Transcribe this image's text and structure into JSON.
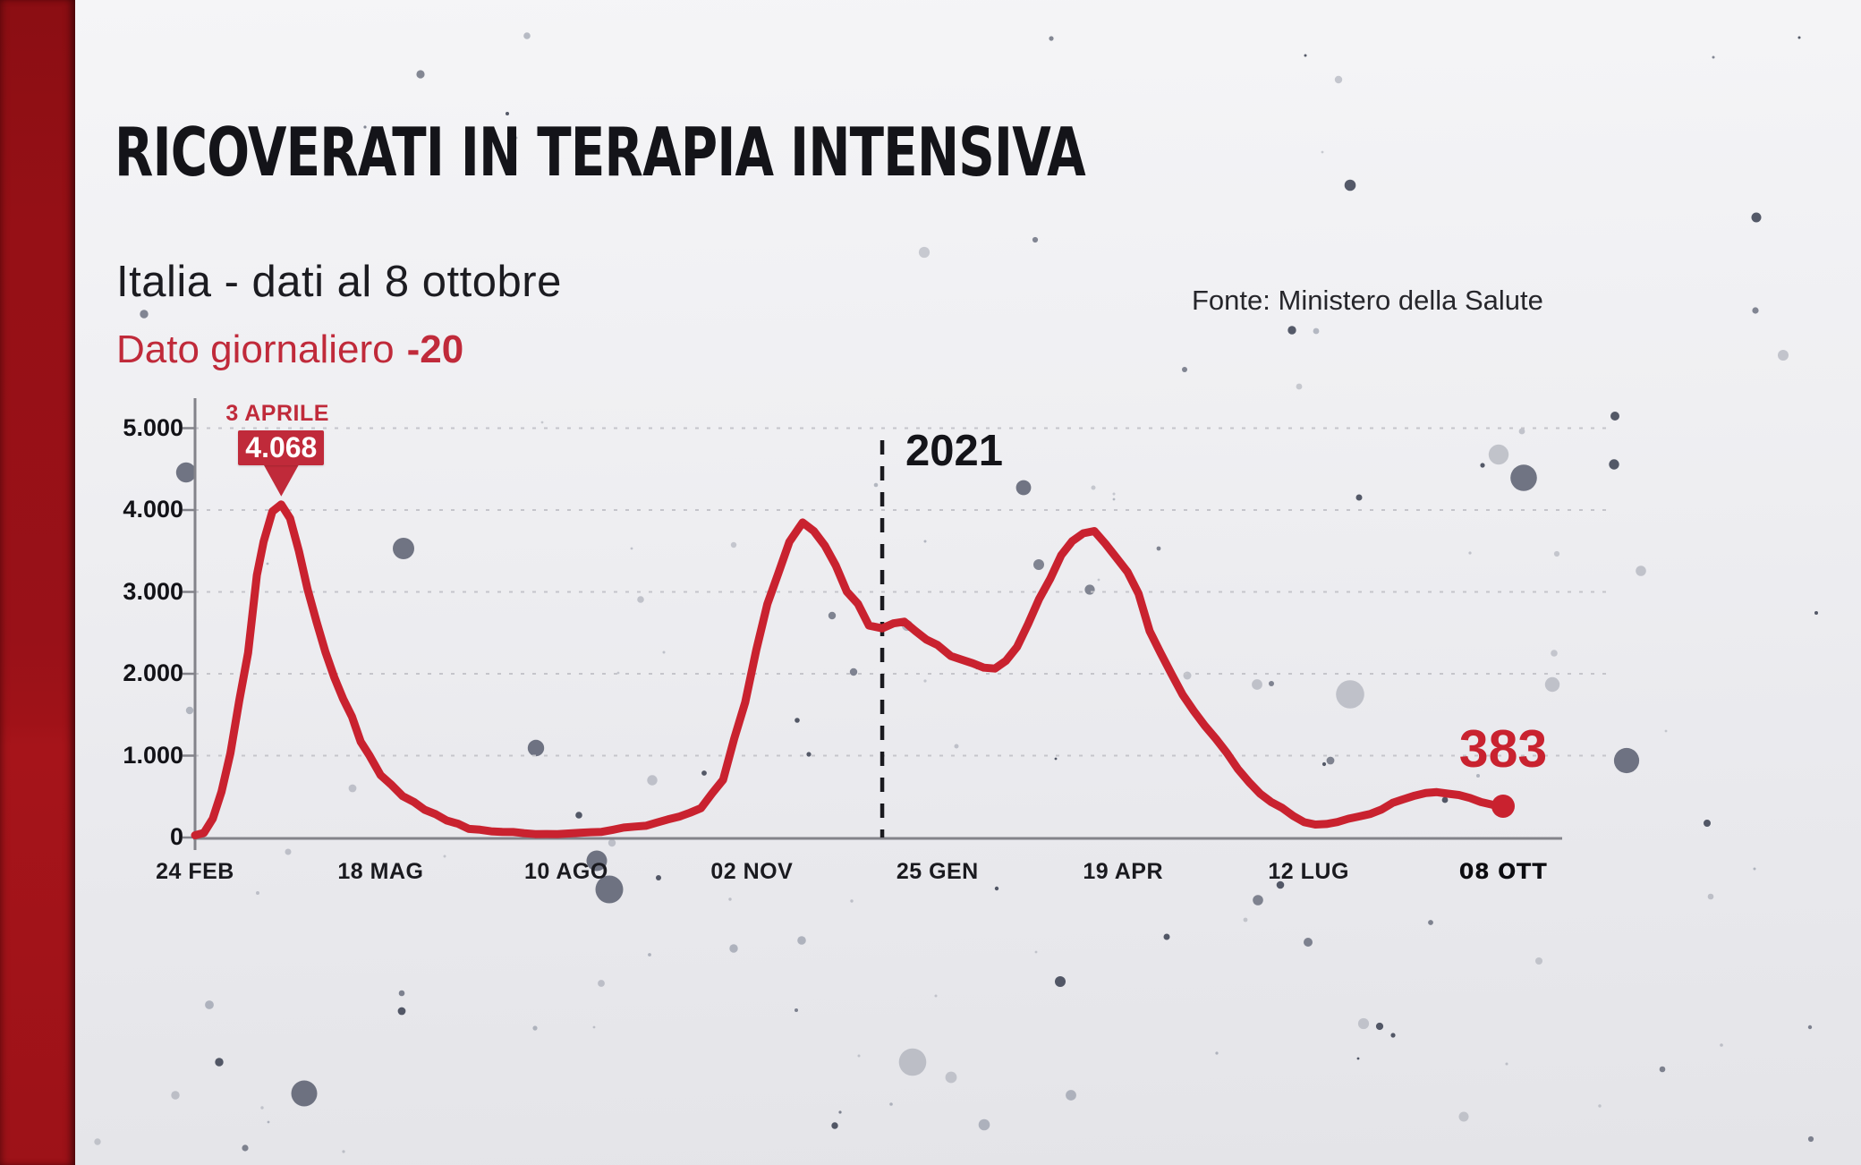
{
  "header": {
    "title": "RICOVERATI IN TERAPIA INTENSIVA",
    "subtitle": "Italia - dati al 8 ottobre",
    "source": "Fonte: Ministero della Salute",
    "daily_label": "Dato giornaliero",
    "daily_delta": "-20"
  },
  "colors": {
    "accent_red": "#c02a3a",
    "line_red": "#c9222f",
    "dark_text": "#141419",
    "grid": "#c5c5cb",
    "axis": "#83838a",
    "bar_top": "#8b0e13",
    "bar_mid": "#a01218",
    "bar_bot": "#a6141a"
  },
  "chart_data": {
    "type": "line",
    "title": "Ricoverati in terapia intensiva - Italia",
    "xlabel": "",
    "ylabel": "",
    "x_tick_labels": [
      "24 FEB",
      "18 MAG",
      "10 AGO",
      "02 NOV",
      "25 GEN",
      "19 APR",
      "12 LUG",
      "08 OTT"
    ],
    "x_tick_days": [
      0,
      84,
      168,
      252,
      336,
      420,
      504,
      592
    ],
    "y_tick_labels": [
      "0",
      "1.000",
      "2.000",
      "3.000",
      "4.000",
      "5.000"
    ],
    "y_tick_values": [
      0,
      1000,
      2000,
      3000,
      4000,
      5000
    ],
    "ylim": [
      0,
      5000
    ],
    "x_range_days": [
      0,
      592
    ],
    "grid": "horizontal dashed",
    "legend": "none",
    "divider": {
      "label": "2021",
      "day": 311
    },
    "peak_annotation": {
      "date_label": "3 APRILE",
      "value_label": "4.068",
      "day": 39,
      "value": 4068
    },
    "last_point": {
      "value_label": "383",
      "day": 592,
      "value": 383
    },
    "series": [
      {
        "name": "Ricoverati in terapia intensiva",
        "points": [
          [
            0,
            27
          ],
          [
            4,
            56
          ],
          [
            8,
            229
          ],
          [
            12,
            560
          ],
          [
            16,
            1028
          ],
          [
            20,
            1672
          ],
          [
            24,
            2257
          ],
          [
            28,
            3204
          ],
          [
            31,
            3612
          ],
          [
            35,
            3981
          ],
          [
            39,
            4068
          ],
          [
            43,
            3898
          ],
          [
            47,
            3497
          ],
          [
            51,
            3026
          ],
          [
            55,
            2635
          ],
          [
            59,
            2267
          ],
          [
            63,
            1956
          ],
          [
            67,
            1694
          ],
          [
            71,
            1479
          ],
          [
            75,
            1168
          ],
          [
            79,
            999
          ],
          [
            84,
            762
          ],
          [
            89,
            640
          ],
          [
            94,
            505
          ],
          [
            99,
            435
          ],
          [
            104,
            338
          ],
          [
            109,
            283
          ],
          [
            114,
            207
          ],
          [
            119,
            168
          ],
          [
            124,
            105
          ],
          [
            129,
            95
          ],
          [
            134,
            75
          ],
          [
            139,
            68
          ],
          [
            144,
            67
          ],
          [
            149,
            53
          ],
          [
            154,
            41
          ],
          [
            159,
            43
          ],
          [
            164,
            42
          ],
          [
            169,
            49
          ],
          [
            174,
            58
          ],
          [
            179,
            64
          ],
          [
            184,
            69
          ],
          [
            189,
            94
          ],
          [
            194,
            121
          ],
          [
            199,
            133
          ],
          [
            204,
            143
          ],
          [
            209,
            182
          ],
          [
            214,
            221
          ],
          [
            219,
            254
          ],
          [
            224,
            303
          ],
          [
            229,
            358
          ],
          [
            234,
            539
          ],
          [
            239,
            705
          ],
          [
            244,
            1208
          ],
          [
            249,
            1651
          ],
          [
            254,
            2292
          ],
          [
            259,
            2849
          ],
          [
            264,
            3230
          ],
          [
            269,
            3612
          ],
          [
            275,
            3848
          ],
          [
            280,
            3744
          ],
          [
            285,
            3567
          ],
          [
            290,
            3320
          ],
          [
            295,
            3003
          ],
          [
            300,
            2855
          ],
          [
            305,
            2589
          ],
          [
            311,
            2555
          ],
          [
            316,
            2615
          ],
          [
            321,
            2636
          ],
          [
            326,
            2522
          ],
          [
            331,
            2418
          ],
          [
            336,
            2352
          ],
          [
            342,
            2218
          ],
          [
            347,
            2172
          ],
          [
            352,
            2128
          ],
          [
            357,
            2074
          ],
          [
            362,
            2063
          ],
          [
            367,
            2157
          ],
          [
            372,
            2327
          ],
          [
            377,
            2605
          ],
          [
            382,
            2914
          ],
          [
            387,
            3157
          ],
          [
            392,
            3448
          ],
          [
            397,
            3620
          ],
          [
            402,
            3716
          ],
          [
            407,
            3743
          ],
          [
            412,
            3588
          ],
          [
            417,
            3417
          ],
          [
            422,
            3244
          ],
          [
            427,
            2979
          ],
          [
            432,
            2522
          ],
          [
            437,
            2253
          ],
          [
            442,
            1992
          ],
          [
            447,
            1742
          ],
          [
            452,
            1544
          ],
          [
            457,
            1365
          ],
          [
            462,
            1206
          ],
          [
            467,
            1033
          ],
          [
            472,
            836
          ],
          [
            477,
            677
          ],
          [
            482,
            537
          ],
          [
            487,
            434
          ],
          [
            492,
            362
          ],
          [
            497,
            263
          ],
          [
            502,
            187
          ],
          [
            507,
            158
          ],
          [
            512,
            165
          ],
          [
            517,
            189
          ],
          [
            522,
            230
          ],
          [
            527,
            258
          ],
          [
            532,
            288
          ],
          [
            537,
            342
          ],
          [
            542,
            423
          ],
          [
            547,
            469
          ],
          [
            552,
            511
          ],
          [
            557,
            544
          ],
          [
            562,
            554
          ],
          [
            567,
            536
          ],
          [
            572,
            519
          ],
          [
            577,
            483
          ],
          [
            582,
            433
          ],
          [
            587,
            401
          ],
          [
            592,
            383
          ]
        ]
      }
    ]
  }
}
